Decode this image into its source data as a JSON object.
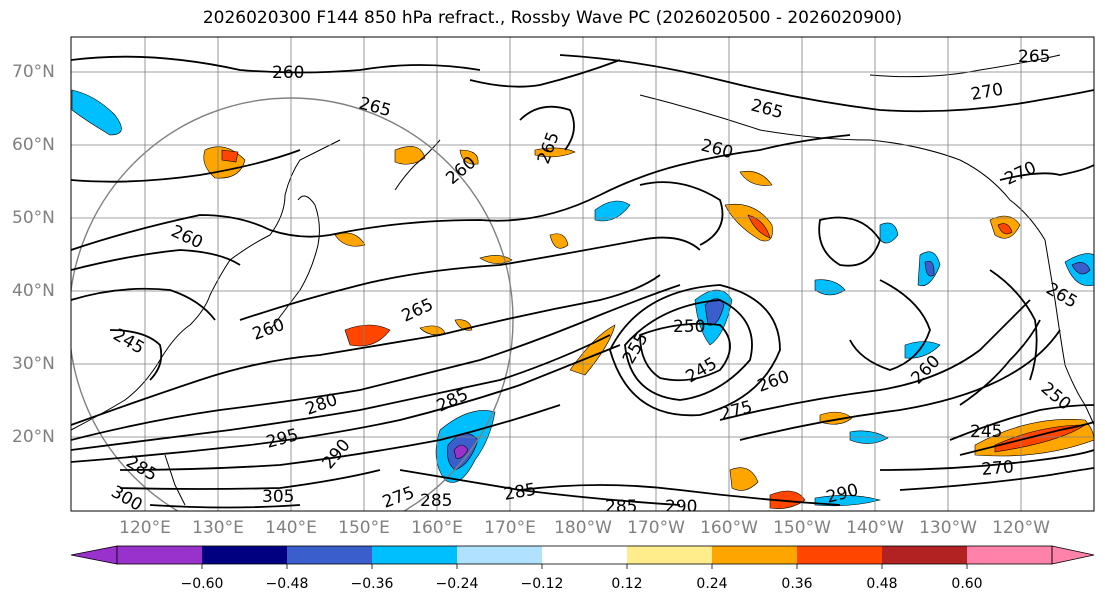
{
  "title": "2026020300 F144 850 hPa refract., Rossby Wave PC (2026020500 - 2026020900)",
  "map": {
    "lat_labels": [
      "70°N",
      "60°N",
      "50°N",
      "40°N",
      "30°N",
      "20°N"
    ],
    "lon_labels": [
      "120°E",
      "130°E",
      "140°E",
      "150°E",
      "160°E",
      "170°E",
      "180°W",
      "170°W",
      "160°W",
      "150°W",
      "140°W",
      "130°W",
      "120°W"
    ],
    "contour_labels": [
      "260",
      "265",
      "265",
      "265",
      "260",
      "270",
      "265",
      "260",
      "260",
      "245",
      "260",
      "265",
      "250",
      "255",
      "245",
      "260",
      "275",
      "280",
      "295",
      "290",
      "285",
      "305",
      "275",
      "285",
      "285",
      "285",
      "290",
      "290",
      "260",
      "250",
      "245",
      "270",
      "265",
      "300",
      "285"
    ],
    "colors": {
      "contour": "#000000",
      "grid": "#808080",
      "coast": "#000000"
    }
  },
  "colorbar": {
    "ticks": [
      "−0.60",
      "−0.48",
      "−0.36",
      "−0.24",
      "−0.12",
      "0.12",
      "0.24",
      "0.36",
      "0.48",
      "0.60"
    ],
    "colors": [
      "#9932CC",
      "#000080",
      "#3A5FCD",
      "#00BFFF",
      "#B0E2FF",
      "#FFFFFF",
      "#FFEC8B",
      "#FFA500",
      "#FF4500",
      "#B22222",
      "#FF82AB"
    ]
  }
}
